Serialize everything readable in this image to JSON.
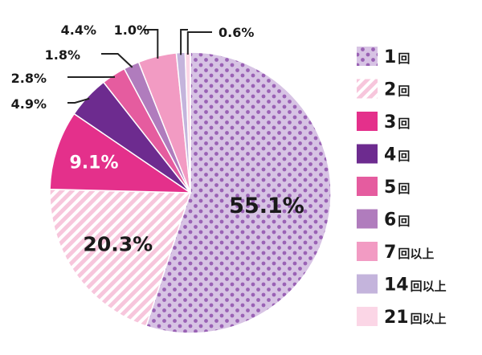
{
  "chart_data": {
    "type": "pie",
    "unit": "%",
    "slices": [
      {
        "label": "1回",
        "value": 55.1,
        "display": "55.1%",
        "color": "#d7c3e4",
        "pattern": "dots"
      },
      {
        "label": "2回",
        "value": 20.3,
        "display": "20.3%",
        "color": "#f6bfd8",
        "pattern": "stripes"
      },
      {
        "label": "3回",
        "value": 9.1,
        "display": "9.1%",
        "color": "#e4308b",
        "pattern": "solid"
      },
      {
        "label": "4回",
        "value": 4.9,
        "display": "4.9%",
        "color": "#6d2b8f",
        "pattern": "solid"
      },
      {
        "label": "5回",
        "value": 2.8,
        "display": "2.8%",
        "color": "#e55c9f",
        "pattern": "solid"
      },
      {
        "label": "6回",
        "value": 1.8,
        "display": "1.8%",
        "color": "#b07cbd",
        "pattern": "solid"
      },
      {
        "label": "7回以上",
        "value": 4.4,
        "display": "4.4%",
        "color": "#f29bc3",
        "pattern": "solid"
      },
      {
        "label": "14回以上",
        "value": 1.0,
        "display": "1.0%",
        "color": "#c4b4dc",
        "pattern": "solid"
      },
      {
        "label": "21回以上",
        "value": 0.6,
        "display": "0.6%",
        "color": "#fbd6e6",
        "pattern": "solid"
      }
    ],
    "legend_placement": "right"
  }
}
